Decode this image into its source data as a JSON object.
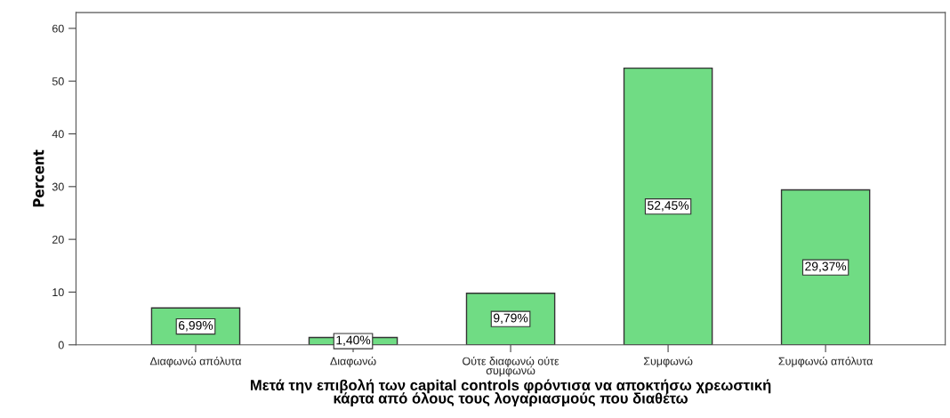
{
  "chart_data": {
    "type": "bar",
    "xlabel": "Μετά την επιβολή των capital controls φρόντισα να αποκτήσω χρεωστική\nκάρτα από όλους τους λογαριασμούς που διαθέτω",
    "ylabel": "Percent",
    "categories": [
      "Διαφωνώ απόλυτα",
      "Διαφωνώ",
      "Ούτε διαφωνώ ούτε\nσυμφωνώ",
      "Συμφωνώ",
      "Συμφωνώ απόλυτα"
    ],
    "values": [
      6.99,
      1.4,
      9.79,
      52.45,
      29.37
    ],
    "value_labels": [
      "6,99%",
      "1,40%",
      "9,79%",
      "52,45%",
      "29,37%"
    ],
    "color": "#70dc84",
    "ylim": [
      0,
      63
    ],
    "yticks": [
      0,
      10,
      20,
      30,
      40,
      50,
      60
    ],
    "grid": false,
    "legend": false
  }
}
